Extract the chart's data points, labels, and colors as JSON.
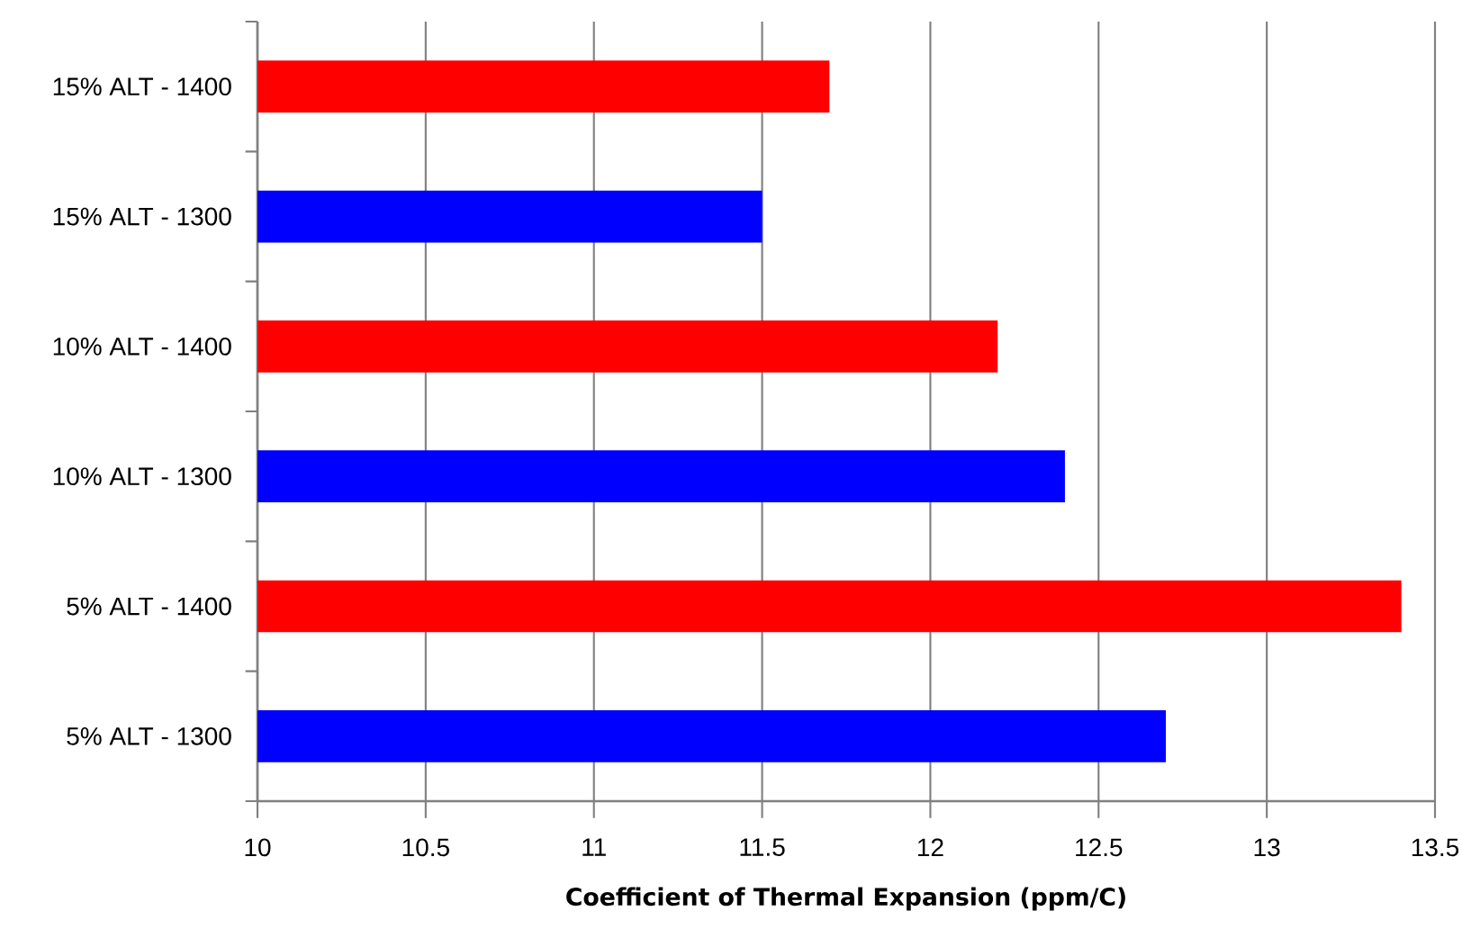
{
  "chart_data": {
    "type": "bar",
    "orientation": "horizontal",
    "xlabel": "Coefficient of Thermal Expansion  (ppm/C)",
    "categories": [
      "15% ALT - 1400",
      "15% ALT - 1300",
      "10% ALT - 1400",
      "10% ALT - 1300",
      "5% ALT - 1400",
      "5% ALT - 1300"
    ],
    "values": [
      11.7,
      11.5,
      12.2,
      12.4,
      13.4,
      12.7
    ],
    "colors": [
      "#ff0000",
      "#0000ff",
      "#ff0000",
      "#0000ff",
      "#ff0000",
      "#0000ff"
    ],
    "xlim": [
      10,
      13.5
    ],
    "xticks": [
      10,
      10.5,
      11,
      11.5,
      12,
      12.5,
      13,
      13.5
    ],
    "grid": "x"
  }
}
